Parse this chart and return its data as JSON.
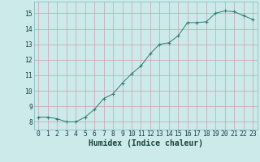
{
  "x": [
    0,
    1,
    2,
    3,
    4,
    5,
    6,
    7,
    8,
    9,
    10,
    11,
    12,
    13,
    14,
    15,
    16,
    17,
    18,
    19,
    20,
    21,
    22,
    23
  ],
  "y": [
    8.3,
    8.3,
    8.2,
    8.0,
    8.0,
    8.3,
    8.8,
    9.5,
    9.8,
    10.5,
    11.1,
    11.6,
    12.4,
    13.0,
    13.1,
    13.55,
    14.4,
    14.4,
    14.45,
    15.0,
    15.15,
    15.1,
    14.85,
    14.6
  ],
  "line_color": "#2d7a72",
  "marker": "+",
  "marker_color": "#2d7a72",
  "bg_color": "#cceaea",
  "grid_color_major": "#b8d8d8",
  "grid_color_minor": "#d4ecec",
  "xlabel": "Humidex (Indice chaleur)",
  "ylim": [
    7.5,
    15.75
  ],
  "xlim": [
    -0.5,
    23.5
  ],
  "yticks": [
    8,
    9,
    10,
    11,
    12,
    13,
    14,
    15
  ],
  "xticks": [
    0,
    1,
    2,
    3,
    4,
    5,
    6,
    7,
    8,
    9,
    10,
    11,
    12,
    13,
    14,
    15,
    16,
    17,
    18,
    19,
    20,
    21,
    22,
    23
  ],
  "tick_fontsize": 5.8,
  "xlabel_fontsize": 7.0,
  "label_color": "#1a4040"
}
